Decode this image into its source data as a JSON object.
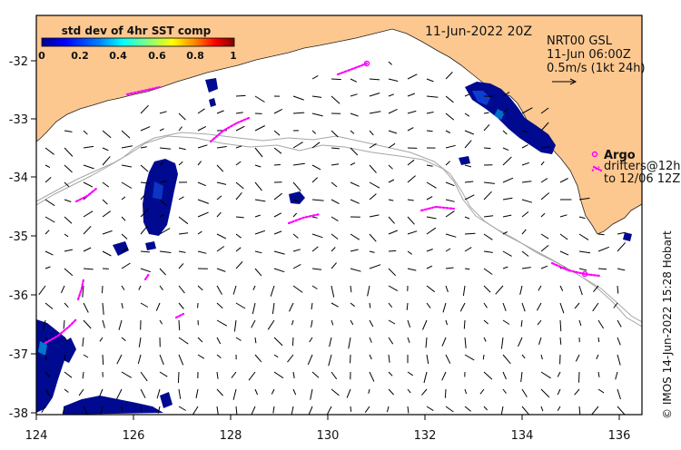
{
  "map": {
    "date_label": "11-Jun-2022 20Z",
    "info_lines": [
      "NRT00 GSL",
      "11-Jun 06:00Z",
      "0.5m/s (1kt 24h)"
    ],
    "colors": {
      "land": "#fdc890",
      "ocean": "#ffffff",
      "frame": "#000000",
      "argo": "#ff00ff",
      "drifter_tracks": "#ff00ff",
      "isobath": "#a6a6a6",
      "vectors": "#000000"
    }
  },
  "colorbar": {
    "title": "std dev of 4hr SST comp",
    "ticks": [
      "0",
      "0.2",
      "0.4",
      "0.6",
      "0.8",
      "1"
    ],
    "colormap": [
      "#00008f",
      "#0000ff",
      "#0080ff",
      "#00ffff",
      "#80ff80",
      "#ffff00",
      "#ff8000",
      "#ff0000",
      "#800000"
    ]
  },
  "legend": {
    "argo_label": "Argo",
    "drifters_label": "drifters@12h",
    "drifters_to": "to 12/06 12Z"
  },
  "axes": {
    "xticks": [
      "124",
      "126",
      "128",
      "130",
      "132",
      "134",
      "136"
    ],
    "yticks": [
      "-32",
      "-33",
      "-34",
      "-35",
      "-36",
      "-37",
      "-38"
    ]
  },
  "credit": "© IMOS 14-Jun-2022 15:28 Hobart"
}
